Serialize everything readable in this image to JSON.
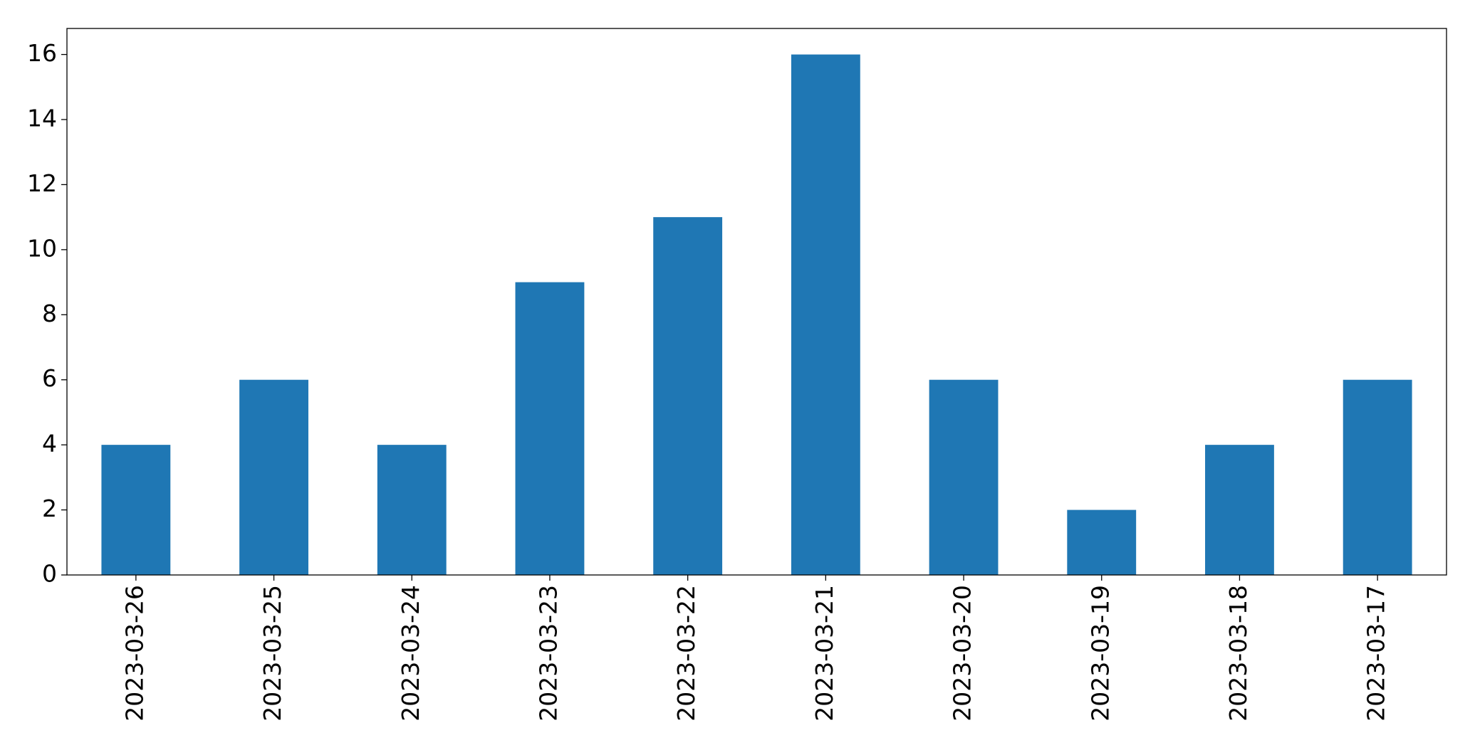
{
  "chart_data": {
    "type": "bar",
    "categories": [
      "2023-03-26",
      "2023-03-25",
      "2023-03-24",
      "2023-03-23",
      "2023-03-22",
      "2023-03-21",
      "2023-03-20",
      "2023-03-19",
      "2023-03-18",
      "2023-03-17"
    ],
    "values": [
      4,
      6,
      4,
      9,
      11,
      16,
      6,
      2,
      4,
      6
    ],
    "color": "#1f77b4",
    "ylim": [
      0,
      16.8
    ],
    "yticks": [
      0,
      2,
      4,
      6,
      8,
      10,
      12,
      14,
      16
    ],
    "grid": false
  }
}
